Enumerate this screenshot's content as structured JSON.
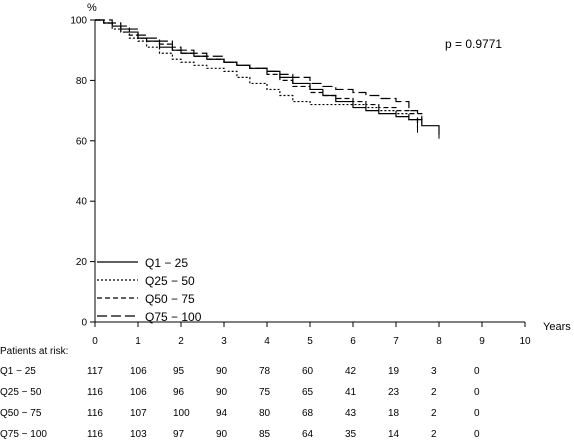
{
  "chart_data": {
    "type": "line",
    "title": "",
    "ylabel": "%",
    "xlabel": "Years",
    "xlim": [
      0,
      10
    ],
    "ylim": [
      0,
      100
    ],
    "x_ticks": [
      "0",
      "1",
      "2",
      "3",
      "4",
      "5",
      "6",
      "7",
      "8",
      "9",
      "10"
    ],
    "y_ticks": [
      "0",
      "20",
      "40",
      "60",
      "80",
      "100"
    ],
    "annotation": "p = 0.9771",
    "legend_position": "bottom-left",
    "grid": false,
    "series": [
      {
        "name": "Q1 − 25",
        "dash": "solid",
        "x": [
          0,
          0.2,
          0.4,
          0.6,
          0.8,
          1.0,
          1.2,
          1.5,
          1.8,
          2.0,
          2.3,
          2.6,
          3.0,
          3.3,
          3.6,
          4.0,
          4.3,
          4.6,
          5.0,
          5.3,
          5.6,
          6.0,
          6.3,
          6.6,
          7.0,
          7.3,
          7.6,
          8.0
        ],
        "y": [
          100,
          99,
          98,
          97,
          96,
          94,
          93,
          91,
          90,
          89,
          88,
          87,
          86,
          85,
          84,
          83,
          81,
          79,
          77,
          75,
          73,
          71,
          70,
          69,
          68,
          67,
          65,
          62
        ]
      },
      {
        "name": "Q25 − 50",
        "dash": "dotted",
        "x": [
          0,
          0.2,
          0.4,
          0.6,
          0.8,
          1.0,
          1.2,
          1.5,
          1.8,
          2.0,
          2.3,
          2.6,
          3.0,
          3.3,
          3.6,
          4.0,
          4.3,
          4.6,
          5.0,
          5.3,
          5.6,
          6.0,
          6.3,
          6.6,
          7.0,
          7.3,
          7.5
        ],
        "y": [
          100,
          99,
          97,
          96,
          94,
          93,
          91,
          89,
          87,
          86,
          85,
          84,
          83,
          81,
          79,
          77,
          75,
          73,
          72,
          72,
          72,
          72,
          71,
          70,
          69,
          67,
          64
        ]
      },
      {
        "name": "Q50 − 75",
        "dash": "dashed",
        "x": [
          0,
          0.2,
          0.4,
          0.6,
          0.8,
          1.0,
          1.2,
          1.5,
          1.8,
          2.0,
          2.3,
          2.6,
          3.0,
          3.3,
          3.6,
          4.0,
          4.3,
          4.6,
          5.0,
          5.3,
          5.6,
          6.0,
          6.3,
          6.6,
          7.0,
          7.3,
          7.6
        ],
        "y": [
          100,
          99,
          98,
          96,
          95,
          94,
          93,
          92,
          90,
          89,
          88,
          87,
          86,
          85,
          84,
          82,
          80,
          78,
          76,
          75,
          74,
          73,
          72,
          71,
          70,
          69,
          67
        ]
      },
      {
        "name": "Q75 − 100",
        "dash": "longdash",
        "x": [
          0,
          0.2,
          0.4,
          0.6,
          0.8,
          1.0,
          1.2,
          1.5,
          1.8,
          2.0,
          2.3,
          2.6,
          3.0,
          3.3,
          3.6,
          4.0,
          4.3,
          4.6,
          5.0,
          5.3,
          5.6,
          6.0,
          6.3,
          6.6,
          7.0,
          7.3,
          7.5
        ],
        "y": [
          100,
          100,
          99,
          98,
          97,
          95,
          94,
          93,
          91,
          90,
          89,
          88,
          86,
          85,
          84,
          83,
          82,
          81,
          79,
          78,
          77,
          76,
          75,
          74,
          73,
          70,
          66
        ]
      }
    ]
  },
  "risk_table": {
    "title": "Patients at risk:",
    "rows": [
      {
        "label": "Q1 − 25",
        "values": [
          "117",
          "106",
          "95",
          "90",
          "78",
          "60",
          "42",
          "19",
          "3",
          "0"
        ]
      },
      {
        "label": "Q25 − 50",
        "values": [
          "116",
          "106",
          "96",
          "90",
          "75",
          "65",
          "41",
          "23",
          "2",
          "0"
        ]
      },
      {
        "label": "Q50 − 75",
        "values": [
          "116",
          "107",
          "100",
          "94",
          "80",
          "68",
          "43",
          "18",
          "2",
          "0"
        ]
      },
      {
        "label": "Q75 − 100",
        "values": [
          "116",
          "103",
          "97",
          "90",
          "85",
          "64",
          "35",
          "14",
          "2",
          "0"
        ]
      }
    ]
  }
}
